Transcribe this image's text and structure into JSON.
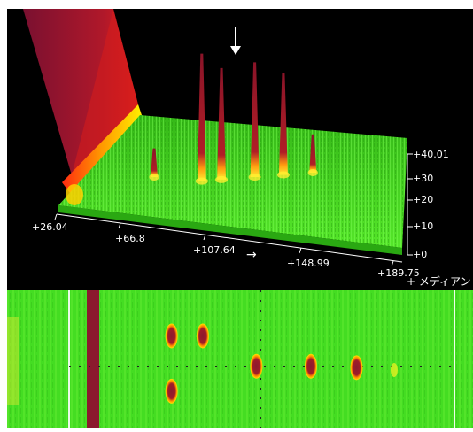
{
  "chart_data": [
    {
      "type": "3d-surface",
      "title": "",
      "xlabel": "",
      "ylabel": "",
      "x_ticks": [
        "+26.04",
        "+66.8",
        "+107.64",
        "+148.99",
        "+189.75"
      ],
      "z_ticks": [
        "+0",
        "+10",
        "+20",
        "+30",
        "+40.01"
      ],
      "z_range": [
        0,
        40.01
      ],
      "legend_label": "+ メディアン",
      "direction_arrow": "→",
      "marker": "↓",
      "peaks": [
        {
          "x": 28.0,
          "height": 60,
          "note": "off-scale wall"
        },
        {
          "x": 70.0,
          "height": 40
        },
        {
          "x": 84.0,
          "height": 35
        },
        {
          "x": 107.64,
          "height": 36,
          "marked": true
        },
        {
          "x": 128.0,
          "height": 32
        },
        {
          "x": 148.99,
          "height": 12
        },
        {
          "x": 68.0,
          "height": 9
        }
      ],
      "colors": {
        "background": "#000000",
        "base": "#33dd00",
        "peak": "#9e1a2a",
        "mid": "#ffd000"
      }
    },
    {
      "type": "heatmap",
      "title": "",
      "background_color": "#44dd22",
      "band": {
        "color": "#8b1a2e"
      },
      "crosshair": {
        "color": "#222222"
      },
      "spots": [
        {
          "name": "spot-1",
          "x": 0.353,
          "y": 0.33
        },
        {
          "name": "spot-2",
          "x": 0.42,
          "y": 0.33
        },
        {
          "name": "spot-3",
          "x": 0.535,
          "y": 0.55
        },
        {
          "name": "spot-4",
          "x": 0.652,
          "y": 0.55
        },
        {
          "name": "spot-5",
          "x": 0.75,
          "y": 0.56
        },
        {
          "name": "spot-6",
          "x": 0.353,
          "y": 0.73
        }
      ]
    }
  ]
}
